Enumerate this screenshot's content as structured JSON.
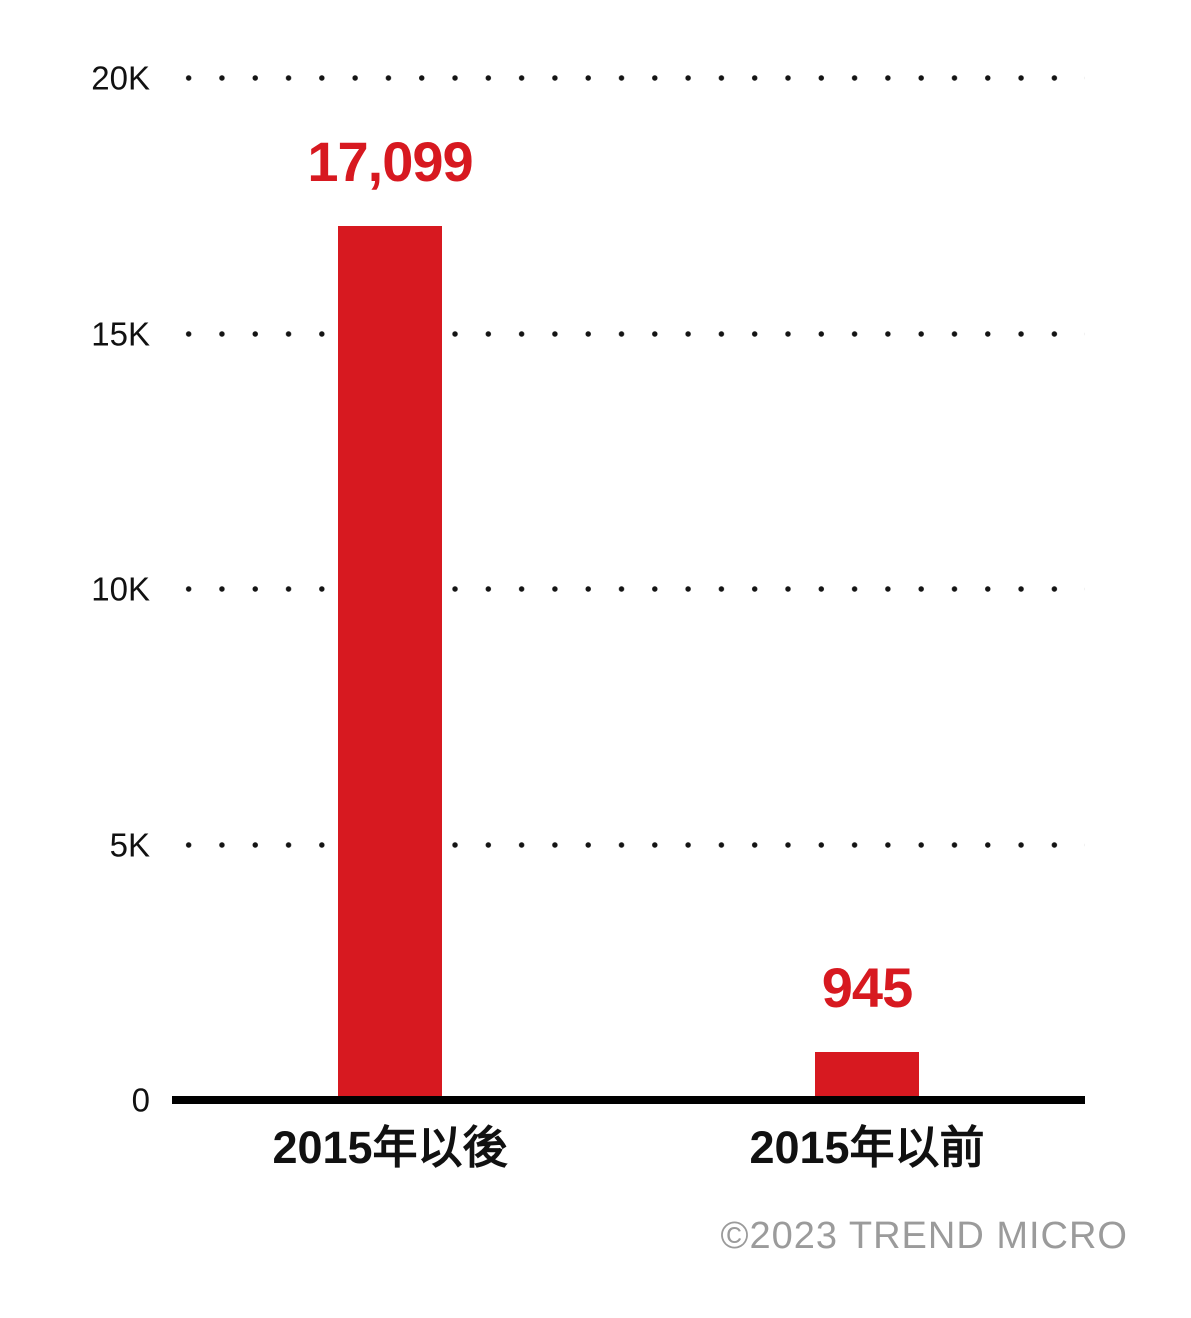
{
  "chart_data": {
    "type": "bar",
    "title": "",
    "categories": [
      "2015年以後",
      "2015年以前"
    ],
    "values": [
      17099,
      945
    ],
    "value_labels": [
      "17,099",
      "945"
    ],
    "yticks": [
      {
        "value": 20000,
        "label": "20K"
      },
      {
        "value": 15000,
        "label": "15K"
      },
      {
        "value": 10000,
        "label": "10K"
      },
      {
        "value": 5000,
        "label": "5K"
      },
      {
        "value": 0,
        "label": "0"
      }
    ],
    "ylim": [
      0,
      20000
    ],
    "xlabel": "",
    "ylabel": "",
    "grid": "dotted-horizontal",
    "legend": "none",
    "colors": {
      "bar": "#D71920",
      "value_label": "#D71920",
      "grid_dots": "#141414",
      "axis": "#000000",
      "tick_text": "#111111"
    }
  },
  "footer": {
    "copyright": "©2023 TREND MICRO",
    "color": "#9B9B9B"
  }
}
